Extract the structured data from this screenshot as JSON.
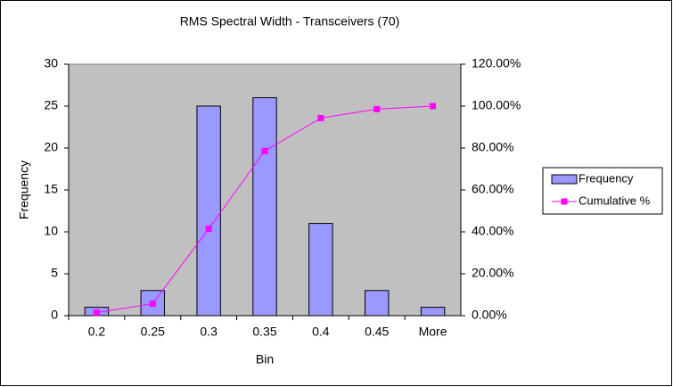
{
  "chart_data": {
    "type": "combo",
    "title": "RMS Spectral Width - Transceivers (70)",
    "xlabel": "Bin",
    "ylabel": "Frequency",
    "categories": [
      "0.2",
      "0.25",
      "0.3",
      "0.35",
      "0.4",
      "0.45",
      "More"
    ],
    "series": [
      {
        "name": "Frequency",
        "type": "bar",
        "color": "#9999ff",
        "values": [
          1,
          3,
          25,
          26,
          11,
          3,
          1
        ]
      },
      {
        "name": "Cumulative %",
        "type": "line",
        "color": "#ff00ff",
        "axis": "y2",
        "values": [
          1.43,
          5.71,
          41.43,
          78.57,
          94.29,
          98.57,
          100
        ]
      }
    ],
    "ylim": [
      0,
      30
    ],
    "yticks": [
      0,
      5,
      10,
      15,
      20,
      25,
      30
    ],
    "y2lim": [
      0,
      120
    ],
    "y2ticks": [
      {
        "value": 0,
        "label": "0.00%"
      },
      {
        "value": 20,
        "label": "20.00%"
      },
      {
        "value": 40,
        "label": "40.00%"
      },
      {
        "value": 60,
        "label": "60.00%"
      },
      {
        "value": 80,
        "label": "80.00%"
      },
      {
        "value": 100,
        "label": "100.00%"
      },
      {
        "value": 120,
        "label": "120.00%"
      }
    ],
    "grid": false,
    "legend": "right",
    "plot_background": "#c0c0c0"
  }
}
